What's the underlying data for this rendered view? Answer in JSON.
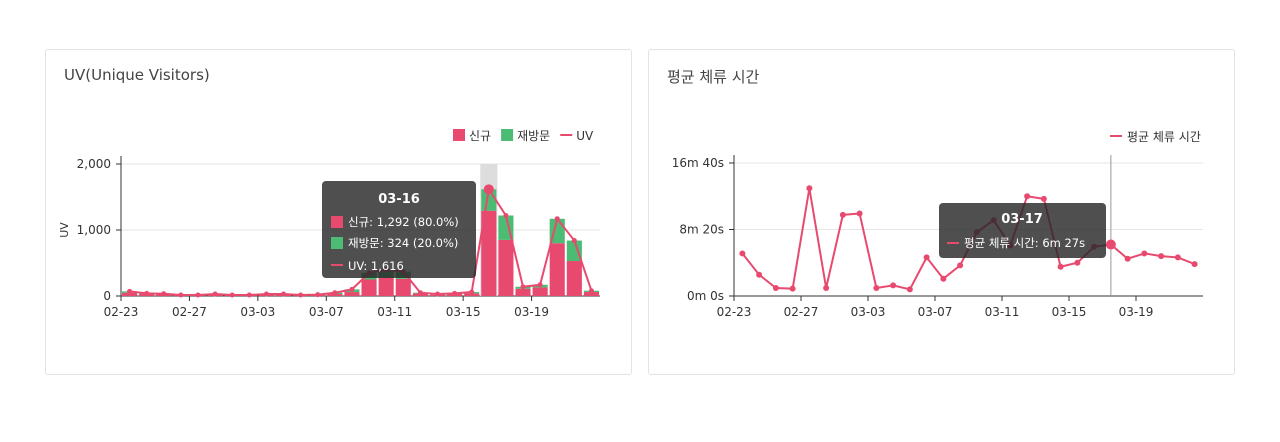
{
  "uv_card": {
    "title": "UV(Unique Visitors)",
    "tooltip": {
      "date": "03-16",
      "new_line": "신규: 1,292 (80.0%)",
      "revisit_line": "재방문: 324 (20.0%)",
      "uv_line": "UV: 1,616"
    }
  },
  "dwell_card": {
    "title": "평균 체류 시간",
    "tooltip": {
      "date": "03-17",
      "line": "평균 체류 시간: 6m 27s"
    }
  },
  "colors": {
    "new": "#e84a6f",
    "revisit": "#4cbb73",
    "line": "#e84a6f",
    "hover": "#dddddd"
  },
  "chart_data": [
    {
      "type": "bar",
      "stacked": true,
      "title": "UV(Unique Visitors)",
      "ylabel": "UV",
      "ylim": [
        0,
        2000
      ],
      "yticks": [
        "0",
        "1,000",
        "2,000"
      ],
      "legend_position": "top-right",
      "categories": [
        "02-23",
        "02-24",
        "02-25",
        "02-26",
        "02-27",
        "02-28",
        "03-01",
        "03-02",
        "03-03",
        "03-04",
        "03-05",
        "03-06",
        "03-07",
        "03-08",
        "03-09",
        "03-10",
        "03-11",
        "03-12",
        "03-13",
        "03-14",
        "03-15",
        "03-16",
        "03-17",
        "03-18",
        "03-19",
        "03-20",
        "03-21",
        "03-22"
      ],
      "xticks": [
        "02-23",
        "02-27",
        "03-03",
        "03-07",
        "03-11",
        "03-15",
        "03-19"
      ],
      "series": [
        {
          "name": "신규",
          "kind": "bar",
          "values": [
            50,
            30,
            25,
            10,
            10,
            20,
            10,
            10,
            20,
            20,
            10,
            15,
            30,
            60,
            250,
            280,
            260,
            40,
            20,
            30,
            40,
            1292,
            850,
            110,
            130,
            800,
            530,
            60
          ]
        },
        {
          "name": "재방문",
          "kind": "bar",
          "values": [
            20,
            10,
            10,
            5,
            5,
            10,
            5,
            5,
            10,
            10,
            5,
            5,
            20,
            40,
            100,
            120,
            110,
            10,
            10,
            10,
            20,
            324,
            370,
            30,
            40,
            370,
            310,
            20
          ]
        },
        {
          "name": "UV",
          "kind": "line",
          "values": [
            70,
            40,
            35,
            15,
            15,
            30,
            15,
            15,
            30,
            30,
            15,
            20,
            50,
            100,
            350,
            400,
            370,
            50,
            30,
            40,
            60,
            1616,
            1220,
            140,
            170,
            1170,
            840,
            80
          ]
        }
      ],
      "hovered_category": "03-16"
    },
    {
      "type": "line",
      "title": "평균 체류 시간",
      "ylim": [
        0,
        1000
      ],
      "yticks": [
        "0m 0s",
        "8m 20s",
        "16m 40s"
      ],
      "legend_position": "top-right",
      "categories": [
        "02-23",
        "02-24",
        "02-25",
        "02-26",
        "02-27",
        "02-28",
        "03-01",
        "03-02",
        "03-03",
        "03-04",
        "03-05",
        "03-06",
        "03-07",
        "03-08",
        "03-09",
        "03-10",
        "03-11",
        "03-12",
        "03-13",
        "03-14",
        "03-15",
        "03-16",
        "03-17",
        "03-18",
        "03-19",
        "03-20",
        "03-21",
        "03-22"
      ],
      "xticks": [
        "02-23",
        "02-27",
        "03-03",
        "03-07",
        "03-11",
        "03-15",
        "03-19"
      ],
      "series": [
        {
          "name": "평균 체류 시간",
          "values": [
            320,
            160,
            60,
            55,
            810,
            60,
            610,
            620,
            60,
            80,
            50,
            290,
            130,
            230,
            480,
            570,
            380,
            750,
            730,
            220,
            250,
            370,
            387,
            280,
            320,
            300,
            290,
            240
          ]
        }
      ],
      "hovered_category": "03-17"
    }
  ]
}
